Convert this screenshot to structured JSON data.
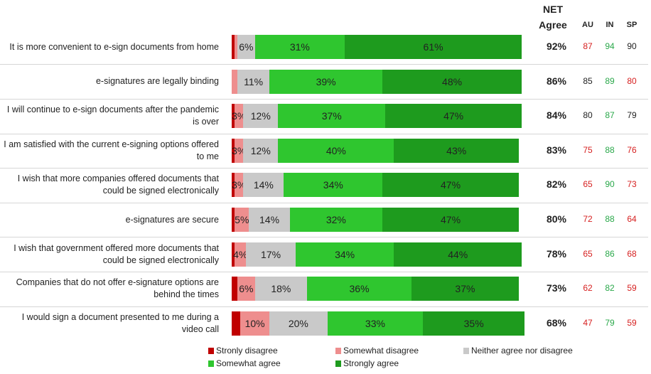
{
  "chart_data": {
    "type": "bar",
    "orientation": "horizontal",
    "stacked": true,
    "categories": [
      "It is more convenient to e-sign documents from home",
      "e-signatures are legally binding",
      "I will continue to e-sign documents after the pandemic is over",
      "I am satisfied with the current e-signing options offered to me",
      "I wish that more companies offered documents that could be signed electronically",
      "e-signatures are secure",
      "I wish that government offered more documents that could be signed electronically",
      "Companies that do not offer e-signature options are behind the times",
      "I would sign a document presented to me during a video call"
    ],
    "series": [
      {
        "name": "Stronly disagree",
        "color": "#c00000",
        "values": [
          1,
          0,
          1,
          1,
          1,
          1,
          1,
          2,
          3
        ],
        "value_labels": [
          null,
          null,
          null,
          null,
          null,
          null,
          null,
          null,
          null
        ]
      },
      {
        "name": "Somewhat disagree",
        "color": "#ee8e8e",
        "values": [
          1,
          2,
          3,
          3,
          3,
          5,
          4,
          6,
          10
        ],
        "value_labels": [
          null,
          null,
          "3%",
          "3%",
          "3%",
          "5%",
          "4%",
          "6%",
          "10%"
        ]
      },
      {
        "name": "Neither agree nor disagree",
        "color": "#c9c9c9",
        "values": [
          6,
          11,
          12,
          12,
          14,
          14,
          17,
          18,
          20
        ],
        "value_labels": [
          "6%",
          "11%",
          "12%",
          "12%",
          "14%",
          "14%",
          "17%",
          "18%",
          "20%"
        ]
      },
      {
        "name": "Somewhat agree",
        "color": "#2fc62f",
        "values": [
          31,
          39,
          37,
          40,
          34,
          32,
          34,
          36,
          33
        ],
        "value_labels": [
          "31%",
          "39%",
          "37%",
          "40%",
          "34%",
          "32%",
          "34%",
          "36%",
          "33%"
        ]
      },
      {
        "name": "Strongly agree",
        "color": "#1e9b1e",
        "values": [
          61,
          48,
          47,
          43,
          47,
          47,
          44,
          37,
          35
        ],
        "value_labels": [
          "61%",
          "48%",
          "47%",
          "43%",
          "47%",
          "47%",
          "44%",
          "37%",
          "35%"
        ]
      }
    ],
    "table": [
      {
        "name": "NET Agree",
        "values": [
          92,
          86,
          84,
          83,
          82,
          80,
          78,
          73,
          68
        ],
        "value_labels": [
          "92%",
          "86%",
          "84%",
          "83%",
          "82%",
          "80%",
          "78%",
          "73%",
          "68%"
        ]
      },
      {
        "name": "AU",
        "values": [
          87,
          85,
          80,
          75,
          65,
          72,
          65,
          62,
          47
        ],
        "colors": [
          "#d62020",
          "#222222",
          "#222222",
          "#d62020",
          "#d62020",
          "#d62020",
          "#d62020",
          "#d62020",
          "#d62020"
        ]
      },
      {
        "name": "IN",
        "values": [
          94,
          89,
          87,
          88,
          90,
          88,
          86,
          82,
          79
        ],
        "colors": [
          "#2aa84a",
          "#2aa84a",
          "#2aa84a",
          "#2aa84a",
          "#2aa84a",
          "#2aa84a",
          "#2aa84a",
          "#2aa84a",
          "#2aa84a"
        ]
      },
      {
        "name": "SP",
        "values": [
          90,
          80,
          79,
          76,
          73,
          64,
          68,
          59,
          59
        ],
        "colors": [
          "#222222",
          "#d62020",
          "#222222",
          "#d62020",
          "#d62020",
          "#d62020",
          "#d62020",
          "#d62020",
          "#d62020"
        ]
      }
    ]
  }
}
